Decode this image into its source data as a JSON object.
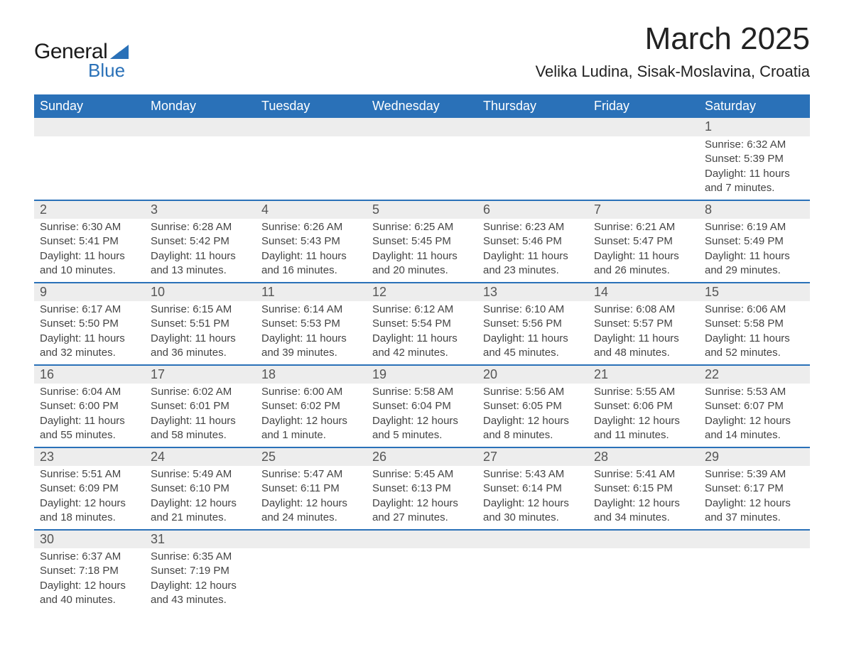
{
  "logo": {
    "word1": "General",
    "word2": "Blue",
    "tri_color": "#2a71b8"
  },
  "title": "March 2025",
  "location": "Velika Ludina, Sisak-Moslavina, Croatia",
  "colors": {
    "header_bg": "#2a71b8",
    "header_text": "#ffffff",
    "daynum_bg": "#ededed",
    "row_divider": "#2a71b8",
    "body_text": "#444444"
  },
  "fonts": {
    "title_size_pt": 33,
    "location_size_pt": 17,
    "header_size_pt": 14,
    "cell_size_pt": 11
  },
  "day_headers": [
    "Sunday",
    "Monday",
    "Tuesday",
    "Wednesday",
    "Thursday",
    "Friday",
    "Saturday"
  ],
  "weeks": [
    [
      null,
      null,
      null,
      null,
      null,
      null,
      {
        "n": "1",
        "sunrise": "Sunrise: 6:32 AM",
        "sunset": "Sunset: 5:39 PM",
        "day1": "Daylight: 11 hours",
        "day2": "and 7 minutes."
      }
    ],
    [
      {
        "n": "2",
        "sunrise": "Sunrise: 6:30 AM",
        "sunset": "Sunset: 5:41 PM",
        "day1": "Daylight: 11 hours",
        "day2": "and 10 minutes."
      },
      {
        "n": "3",
        "sunrise": "Sunrise: 6:28 AM",
        "sunset": "Sunset: 5:42 PM",
        "day1": "Daylight: 11 hours",
        "day2": "and 13 minutes."
      },
      {
        "n": "4",
        "sunrise": "Sunrise: 6:26 AM",
        "sunset": "Sunset: 5:43 PM",
        "day1": "Daylight: 11 hours",
        "day2": "and 16 minutes."
      },
      {
        "n": "5",
        "sunrise": "Sunrise: 6:25 AM",
        "sunset": "Sunset: 5:45 PM",
        "day1": "Daylight: 11 hours",
        "day2": "and 20 minutes."
      },
      {
        "n": "6",
        "sunrise": "Sunrise: 6:23 AM",
        "sunset": "Sunset: 5:46 PM",
        "day1": "Daylight: 11 hours",
        "day2": "and 23 minutes."
      },
      {
        "n": "7",
        "sunrise": "Sunrise: 6:21 AM",
        "sunset": "Sunset: 5:47 PM",
        "day1": "Daylight: 11 hours",
        "day2": "and 26 minutes."
      },
      {
        "n": "8",
        "sunrise": "Sunrise: 6:19 AM",
        "sunset": "Sunset: 5:49 PM",
        "day1": "Daylight: 11 hours",
        "day2": "and 29 minutes."
      }
    ],
    [
      {
        "n": "9",
        "sunrise": "Sunrise: 6:17 AM",
        "sunset": "Sunset: 5:50 PM",
        "day1": "Daylight: 11 hours",
        "day2": "and 32 minutes."
      },
      {
        "n": "10",
        "sunrise": "Sunrise: 6:15 AM",
        "sunset": "Sunset: 5:51 PM",
        "day1": "Daylight: 11 hours",
        "day2": "and 36 minutes."
      },
      {
        "n": "11",
        "sunrise": "Sunrise: 6:14 AM",
        "sunset": "Sunset: 5:53 PM",
        "day1": "Daylight: 11 hours",
        "day2": "and 39 minutes."
      },
      {
        "n": "12",
        "sunrise": "Sunrise: 6:12 AM",
        "sunset": "Sunset: 5:54 PM",
        "day1": "Daylight: 11 hours",
        "day2": "and 42 minutes."
      },
      {
        "n": "13",
        "sunrise": "Sunrise: 6:10 AM",
        "sunset": "Sunset: 5:56 PM",
        "day1": "Daylight: 11 hours",
        "day2": "and 45 minutes."
      },
      {
        "n": "14",
        "sunrise": "Sunrise: 6:08 AM",
        "sunset": "Sunset: 5:57 PM",
        "day1": "Daylight: 11 hours",
        "day2": "and 48 minutes."
      },
      {
        "n": "15",
        "sunrise": "Sunrise: 6:06 AM",
        "sunset": "Sunset: 5:58 PM",
        "day1": "Daylight: 11 hours",
        "day2": "and 52 minutes."
      }
    ],
    [
      {
        "n": "16",
        "sunrise": "Sunrise: 6:04 AM",
        "sunset": "Sunset: 6:00 PM",
        "day1": "Daylight: 11 hours",
        "day2": "and 55 minutes."
      },
      {
        "n": "17",
        "sunrise": "Sunrise: 6:02 AM",
        "sunset": "Sunset: 6:01 PM",
        "day1": "Daylight: 11 hours",
        "day2": "and 58 minutes."
      },
      {
        "n": "18",
        "sunrise": "Sunrise: 6:00 AM",
        "sunset": "Sunset: 6:02 PM",
        "day1": "Daylight: 12 hours",
        "day2": "and 1 minute."
      },
      {
        "n": "19",
        "sunrise": "Sunrise: 5:58 AM",
        "sunset": "Sunset: 6:04 PM",
        "day1": "Daylight: 12 hours",
        "day2": "and 5 minutes."
      },
      {
        "n": "20",
        "sunrise": "Sunrise: 5:56 AM",
        "sunset": "Sunset: 6:05 PM",
        "day1": "Daylight: 12 hours",
        "day2": "and 8 minutes."
      },
      {
        "n": "21",
        "sunrise": "Sunrise: 5:55 AM",
        "sunset": "Sunset: 6:06 PM",
        "day1": "Daylight: 12 hours",
        "day2": "and 11 minutes."
      },
      {
        "n": "22",
        "sunrise": "Sunrise: 5:53 AM",
        "sunset": "Sunset: 6:07 PM",
        "day1": "Daylight: 12 hours",
        "day2": "and 14 minutes."
      }
    ],
    [
      {
        "n": "23",
        "sunrise": "Sunrise: 5:51 AM",
        "sunset": "Sunset: 6:09 PM",
        "day1": "Daylight: 12 hours",
        "day2": "and 18 minutes."
      },
      {
        "n": "24",
        "sunrise": "Sunrise: 5:49 AM",
        "sunset": "Sunset: 6:10 PM",
        "day1": "Daylight: 12 hours",
        "day2": "and 21 minutes."
      },
      {
        "n": "25",
        "sunrise": "Sunrise: 5:47 AM",
        "sunset": "Sunset: 6:11 PM",
        "day1": "Daylight: 12 hours",
        "day2": "and 24 minutes."
      },
      {
        "n": "26",
        "sunrise": "Sunrise: 5:45 AM",
        "sunset": "Sunset: 6:13 PM",
        "day1": "Daylight: 12 hours",
        "day2": "and 27 minutes."
      },
      {
        "n": "27",
        "sunrise": "Sunrise: 5:43 AM",
        "sunset": "Sunset: 6:14 PM",
        "day1": "Daylight: 12 hours",
        "day2": "and 30 minutes."
      },
      {
        "n": "28",
        "sunrise": "Sunrise: 5:41 AM",
        "sunset": "Sunset: 6:15 PM",
        "day1": "Daylight: 12 hours",
        "day2": "and 34 minutes."
      },
      {
        "n": "29",
        "sunrise": "Sunrise: 5:39 AM",
        "sunset": "Sunset: 6:17 PM",
        "day1": "Daylight: 12 hours",
        "day2": "and 37 minutes."
      }
    ],
    [
      {
        "n": "30",
        "sunrise": "Sunrise: 6:37 AM",
        "sunset": "Sunset: 7:18 PM",
        "day1": "Daylight: 12 hours",
        "day2": "and 40 minutes."
      },
      {
        "n": "31",
        "sunrise": "Sunrise: 6:35 AM",
        "sunset": "Sunset: 7:19 PM",
        "day1": "Daylight: 12 hours",
        "day2": "and 43 minutes."
      },
      null,
      null,
      null,
      null,
      null
    ]
  ]
}
